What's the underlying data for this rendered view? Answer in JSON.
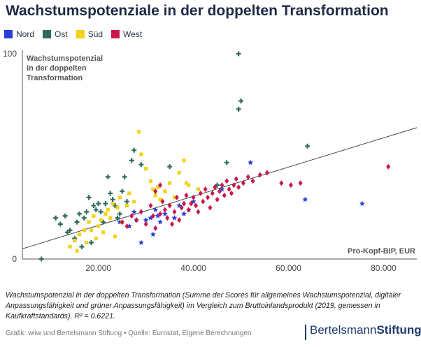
{
  "title": "Wachstumspotenziale in der doppelten Transformation",
  "legend": [
    {
      "label": "Nord",
      "color": "#2b3fd6"
    },
    {
      "label": "Ost",
      "color": "#2f6b5e"
    },
    {
      "label": "Süd",
      "color": "#f2d21b"
    },
    {
      "label": "West",
      "color": "#c8174a"
    }
  ],
  "caption": "Wachstumspotenzial in der doppelten Transformation (Summe der Scores für allgemeines Wachstumspotenzial, digitaler Anpassungsfähigkeit und grüner Anpassungsfähigkeit) im Vergleich zum Bruttoinlandsprodukt (2019, gemessen in Kaufkraftstandards). R² = 0.6221.",
  "footer": "Grafik: wiiw und Bertelsmann Stiftung • Quelle: Eurostat, Eigene Berechnungen",
  "brand": {
    "part1": "Bertelsmann",
    "part2": "Stiftung"
  },
  "chart_data": {
    "type": "scatter",
    "ylabel_lines": [
      "Wachstumspotenzial",
      "in der doppelten",
      "Transformation"
    ],
    "xlabel": "Pro-Kopf-BIP, EUR",
    "xlim": [
      4000,
      87000
    ],
    "ylim": [
      0,
      100
    ],
    "xticks": [
      20000,
      40000,
      60000,
      80000
    ],
    "xtick_labels": [
      "20.000",
      "40.000",
      "60.000",
      "80.000"
    ],
    "yticks": [
      0,
      100
    ],
    "ytick_labels": [
      "0",
      "100"
    ],
    "grid": false,
    "regression": {
      "x": [
        4000,
        87000
      ],
      "y": [
        5,
        64
      ]
    },
    "series": [
      {
        "name": "Nord",
        "color": "#2b3fd6",
        "marker": "star",
        "points": [
          [
            24500,
            18
          ],
          [
            26500,
            16
          ],
          [
            27500,
            23
          ],
          [
            28000,
            19
          ],
          [
            29000,
            8
          ],
          [
            30000,
            19
          ],
          [
            31000,
            20
          ],
          [
            31500,
            12
          ],
          [
            32000,
            24
          ],
          [
            32500,
            21
          ],
          [
            33000,
            18
          ],
          [
            34000,
            22
          ],
          [
            36000,
            20
          ],
          [
            37000,
            26
          ],
          [
            38000,
            22
          ],
          [
            39000,
            24
          ],
          [
            40000,
            28
          ],
          [
            46000,
            34
          ],
          [
            52000,
            47
          ],
          [
            63500,
            29
          ],
          [
            75500,
            27
          ]
        ]
      },
      {
        "name": "Ost",
        "color": "#2f6b5e",
        "marker": "plus",
        "points": [
          [
            8000,
            0
          ],
          [
            11000,
            20
          ],
          [
            12000,
            17
          ],
          [
            13000,
            21
          ],
          [
            14000,
            14
          ],
          [
            15000,
            10
          ],
          [
            15500,
            18
          ],
          [
            16000,
            22
          ],
          [
            16500,
            6
          ],
          [
            17000,
            20
          ],
          [
            17500,
            23
          ],
          [
            18000,
            30
          ],
          [
            18500,
            8
          ],
          [
            19000,
            26
          ],
          [
            19500,
            24
          ],
          [
            20000,
            27
          ],
          [
            20500,
            23
          ],
          [
            21000,
            18
          ],
          [
            21500,
            27
          ],
          [
            22000,
            40
          ],
          [
            22500,
            32
          ],
          [
            23000,
            29
          ],
          [
            23500,
            26
          ],
          [
            24000,
            20
          ],
          [
            24500,
            22
          ],
          [
            25000,
            33
          ],
          [
            25500,
            40
          ],
          [
            26000,
            28
          ],
          [
            27000,
            48
          ],
          [
            27500,
            53
          ],
          [
            29000,
            46
          ],
          [
            35000,
            45
          ],
          [
            45000,
            36
          ],
          [
            47000,
            47
          ],
          [
            49500,
            73
          ],
          [
            50000,
            77
          ],
          [
            49500,
            100
          ],
          [
            64000,
            55
          ],
          [
            13500,
            13
          ]
        ]
      },
      {
        "name": "Süd",
        "color": "#f2d21b",
        "marker": "square",
        "points": [
          [
            14000,
            6
          ],
          [
            15000,
            9
          ],
          [
            15500,
            4
          ],
          [
            16000,
            12
          ],
          [
            17000,
            14
          ],
          [
            17500,
            8
          ],
          [
            18000,
            18
          ],
          [
            18500,
            14
          ],
          [
            19000,
            21
          ],
          [
            19500,
            10
          ],
          [
            20000,
            16
          ],
          [
            20500,
            19
          ],
          [
            21000,
            13
          ],
          [
            21500,
            22
          ],
          [
            22000,
            24
          ],
          [
            22500,
            20
          ],
          [
            23000,
            27
          ],
          [
            23500,
            11
          ],
          [
            24000,
            25
          ],
          [
            24500,
            30
          ],
          [
            25000,
            18
          ],
          [
            26000,
            26
          ],
          [
            26500,
            32
          ],
          [
            27500,
            28
          ],
          [
            28500,
            62
          ],
          [
            29000,
            51
          ],
          [
            30000,
            44
          ],
          [
            31000,
            38
          ],
          [
            31500,
            34
          ],
          [
            32000,
            31
          ],
          [
            32500,
            35
          ],
          [
            33000,
            29
          ],
          [
            34000,
            33
          ],
          [
            35000,
            37
          ],
          [
            36000,
            30
          ],
          [
            37000,
            42
          ],
          [
            38000,
            48
          ],
          [
            38500,
            37
          ],
          [
            39000,
            36
          ],
          [
            41000,
            34
          ]
        ]
      },
      {
        "name": "West",
        "color": "#c8174a",
        "marker": "diamond",
        "points": [
          [
            25000,
            18
          ],
          [
            26000,
            16
          ],
          [
            27000,
            21
          ],
          [
            28000,
            19
          ],
          [
            29000,
            23
          ],
          [
            30000,
            17
          ],
          [
            31000,
            26
          ],
          [
            31500,
            21
          ],
          [
            32000,
            15
          ],
          [
            33000,
            22
          ],
          [
            33500,
            28
          ],
          [
            34000,
            24
          ],
          [
            34500,
            20
          ],
          [
            35000,
            26
          ],
          [
            35500,
            17
          ],
          [
            36000,
            23
          ],
          [
            36500,
            30
          ],
          [
            37000,
            19
          ],
          [
            37500,
            25
          ],
          [
            38000,
            27
          ],
          [
            38500,
            31
          ],
          [
            39000,
            24
          ],
          [
            39500,
            27
          ],
          [
            40000,
            30
          ],
          [
            40500,
            26
          ],
          [
            41000,
            23
          ],
          [
            41500,
            32
          ],
          [
            42000,
            28
          ],
          [
            42500,
            34
          ],
          [
            43000,
            30
          ],
          [
            43500,
            25
          ],
          [
            44000,
            32
          ],
          [
            44500,
            35
          ],
          [
            45000,
            29
          ],
          [
            45500,
            33
          ],
          [
            46000,
            36
          ],
          [
            46500,
            31
          ],
          [
            47000,
            38
          ],
          [
            47500,
            34
          ],
          [
            48000,
            32
          ],
          [
            48500,
            36
          ],
          [
            49000,
            39
          ],
          [
            49500,
            35
          ],
          [
            50500,
            37
          ],
          [
            51500,
            40
          ],
          [
            52500,
            38
          ],
          [
            54000,
            41
          ],
          [
            55500,
            42
          ],
          [
            58500,
            37
          ],
          [
            60500,
            36
          ],
          [
            62500,
            37
          ],
          [
            81000,
            45
          ],
          [
            32000,
            33
          ],
          [
            33000,
            36
          ]
        ]
      }
    ]
  }
}
